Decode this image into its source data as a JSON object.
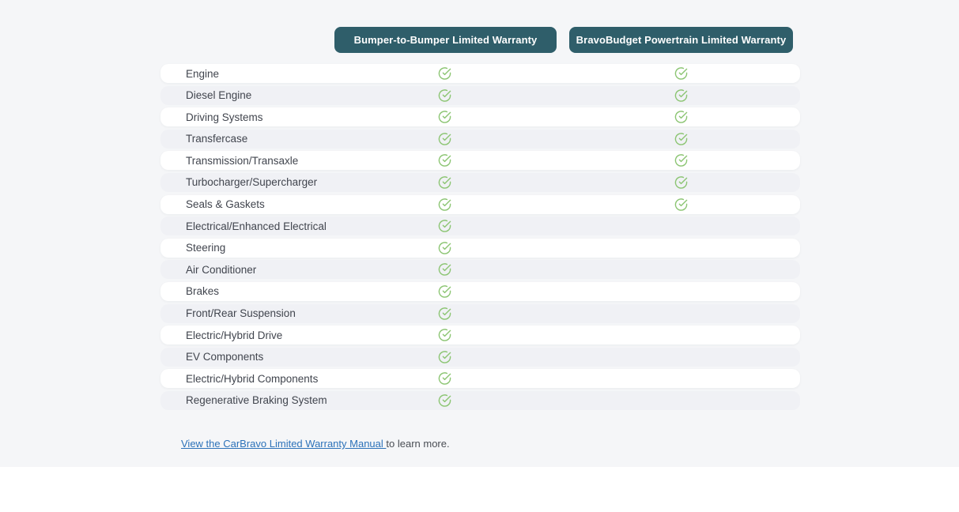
{
  "section": {
    "column_headers": [
      {
        "label": "Bumper-to-Bumper Limited Warranty"
      },
      {
        "label": "BravoBudget Powertrain Limited Warranty"
      }
    ],
    "header_bg": "#2f5e6a",
    "check_color": "#8cc573",
    "check_icon": "check-circle-icon",
    "rows": [
      {
        "label": "Engine",
        "bumper_to_bumper": true,
        "powertrain": true
      },
      {
        "label": "Diesel Engine",
        "bumper_to_bumper": true,
        "powertrain": true
      },
      {
        "label": "Driving Systems",
        "bumper_to_bumper": true,
        "powertrain": true
      },
      {
        "label": "Transfercase",
        "bumper_to_bumper": true,
        "powertrain": true
      },
      {
        "label": "Transmission/Transaxle",
        "bumper_to_bumper": true,
        "powertrain": true
      },
      {
        "label": "Turbocharger/Supercharger",
        "bumper_to_bumper": true,
        "powertrain": true
      },
      {
        "label": "Seals & Gaskets",
        "bumper_to_bumper": true,
        "powertrain": true
      },
      {
        "label": "Electrical/Enhanced Electrical",
        "bumper_to_bumper": true,
        "powertrain": false
      },
      {
        "label": "Steering",
        "bumper_to_bumper": true,
        "powertrain": false
      },
      {
        "label": "Air Conditioner",
        "bumper_to_bumper": true,
        "powertrain": false
      },
      {
        "label": "Brakes",
        "bumper_to_bumper": true,
        "powertrain": false
      },
      {
        "label": "Front/Rear Suspension",
        "bumper_to_bumper": true,
        "powertrain": false
      },
      {
        "label": "Electric/Hybrid Drive",
        "bumper_to_bumper": true,
        "powertrain": false
      },
      {
        "label": "EV Components",
        "bumper_to_bumper": true,
        "powertrain": false
      },
      {
        "label": "Electric/Hybrid Components",
        "bumper_to_bumper": true,
        "powertrain": false
      },
      {
        "label": "Regenerative Braking System",
        "bumper_to_bumper": true,
        "powertrain": false
      }
    ],
    "footer": {
      "link_text": "View the CarBravo Limited Warranty Manual ",
      "suffix_text": "to learn more.",
      "link_color": "#2d72b9"
    }
  }
}
